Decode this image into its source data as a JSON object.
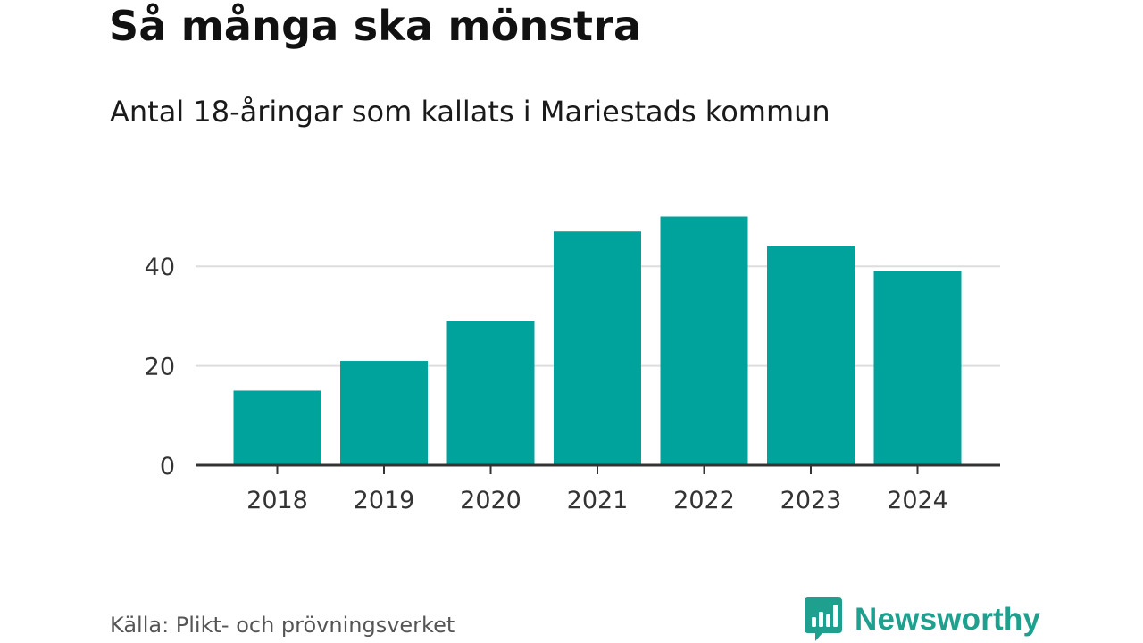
{
  "header": {
    "title": "Så många ska mönstra",
    "subtitle": "Antal 18-åringar som kallats i Mariestads kommun"
  },
  "footer": {
    "source": "Källa: Plikt- och prövningsverket",
    "brand": "Newsworthy",
    "brand_icon": "bar-chart-speech-bubble-icon"
  },
  "colors": {
    "bar": "#00a39b",
    "grid": "#dddddd",
    "axis": "#333333",
    "brand": "#1fa08f"
  },
  "chart_data": {
    "type": "bar",
    "title": "Så många ska mönstra",
    "subtitle": "Antal 18-åringar som kallats i Mariestads kommun",
    "categories": [
      "2018",
      "2019",
      "2020",
      "2021",
      "2022",
      "2023",
      "2024"
    ],
    "values": [
      15,
      21,
      29,
      47,
      50,
      44,
      39
    ],
    "xlabel": "",
    "ylabel": "",
    "ylim": [
      0,
      50
    ],
    "yticks": [
      0,
      20,
      40
    ],
    "grid": true,
    "legend": "none"
  }
}
